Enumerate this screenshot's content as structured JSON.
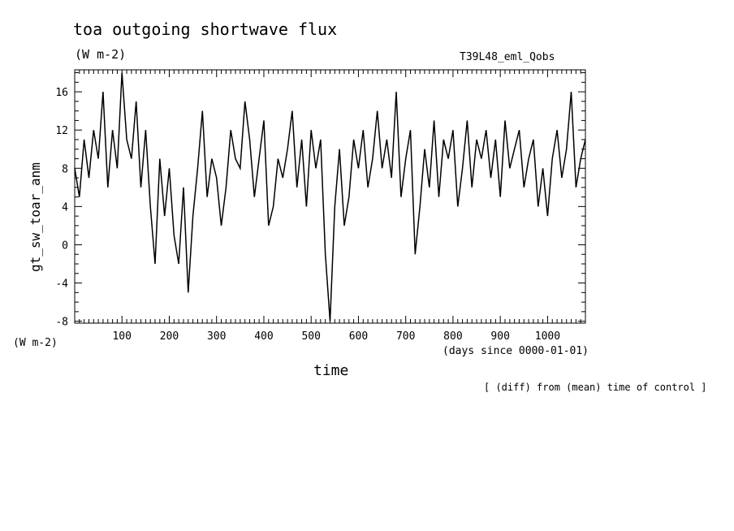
{
  "header": {
    "title": "toa outgoing shortwave flux",
    "units": "(W m-2)",
    "run_name": "T39L48_eml_Qobs"
  },
  "axes": {
    "y_label": "gt_sw_toar_anm",
    "y_units": "(W m-2)",
    "x_label": "time",
    "x_units": "(days since 0000-01-01)"
  },
  "footer": {
    "note": "[ (diff) from (mean) time of control ]"
  },
  "colors": {
    "line": "#000000",
    "background": "#ffffff"
  },
  "chart_data": {
    "type": "line",
    "title": "toa outgoing shortwave flux",
    "xlabel": "time",
    "ylabel": "gt_sw_toar_anm",
    "xlim": [
      0,
      1080
    ],
    "ylim": [
      -8.2,
      18.3
    ],
    "x_ticks": [
      100,
      200,
      300,
      400,
      500,
      600,
      700,
      800,
      900,
      1000
    ],
    "y_ticks": [
      -8,
      -4,
      0,
      4,
      8,
      12,
      16
    ],
    "x_tick_labels": [
      "100",
      "200",
      "300",
      "400",
      "500",
      "600",
      "700",
      "800",
      "900",
      "1000"
    ],
    "y_tick_labels": [
      "-8",
      "-4",
      "0",
      "4",
      "8",
      "12",
      "16"
    ],
    "grid": false,
    "series": [
      {
        "x": [
          0,
          10,
          20,
          30,
          40,
          50,
          60,
          70,
          80,
          90,
          100,
          110,
          120,
          130,
          140,
          150,
          160,
          170,
          180,
          190,
          200,
          210,
          220,
          230,
          240,
          250,
          260,
          270,
          280,
          290,
          300,
          310,
          320,
          330,
          340,
          350,
          360,
          370,
          380,
          390,
          400,
          410,
          420,
          430,
          440,
          450,
          460,
          470,
          480,
          490,
          500,
          510,
          520,
          530,
          540,
          550,
          560,
          570,
          580,
          590,
          600,
          610,
          620,
          630,
          640,
          650,
          660,
          670,
          680,
          690,
          700,
          710,
          720,
          730,
          740,
          750,
          760,
          770,
          780,
          790,
          800,
          810,
          820,
          830,
          840,
          850,
          860,
          870,
          880,
          890,
          900,
          910,
          920,
          930,
          940,
          950,
          960,
          970,
          980,
          990,
          1000,
          1010,
          1020,
          1030,
          1040,
          1050,
          1060,
          1070,
          1080
        ],
        "y": [
          8,
          5,
          11,
          7,
          12,
          9,
          16,
          6,
          12,
          8,
          18,
          11,
          9,
          15,
          6,
          12,
          4,
          -2,
          9,
          3,
          8,
          1,
          -2,
          6,
          -5,
          3,
          8,
          14,
          5,
          9,
          7,
          2,
          6,
          12,
          9,
          8,
          15,
          11,
          5,
          9,
          13,
          2,
          4,
          9,
          7,
          10,
          14,
          6,
          11,
          4,
          12,
          8,
          11,
          -1,
          -8,
          4,
          10,
          2,
          5,
          11,
          8,
          12,
          6,
          9,
          14,
          8,
          11,
          7,
          16,
          5,
          9,
          12,
          -1,
          4,
          10,
          6,
          13,
          5,
          11,
          9,
          12,
          4,
          8,
          13,
          6,
          11,
          9,
          12,
          7,
          11,
          5,
          13,
          8,
          10,
          12,
          6,
          9,
          11,
          4,
          8,
          3,
          9,
          12,
          7,
          10,
          16,
          6,
          9,
          11
        ]
      }
    ]
  }
}
